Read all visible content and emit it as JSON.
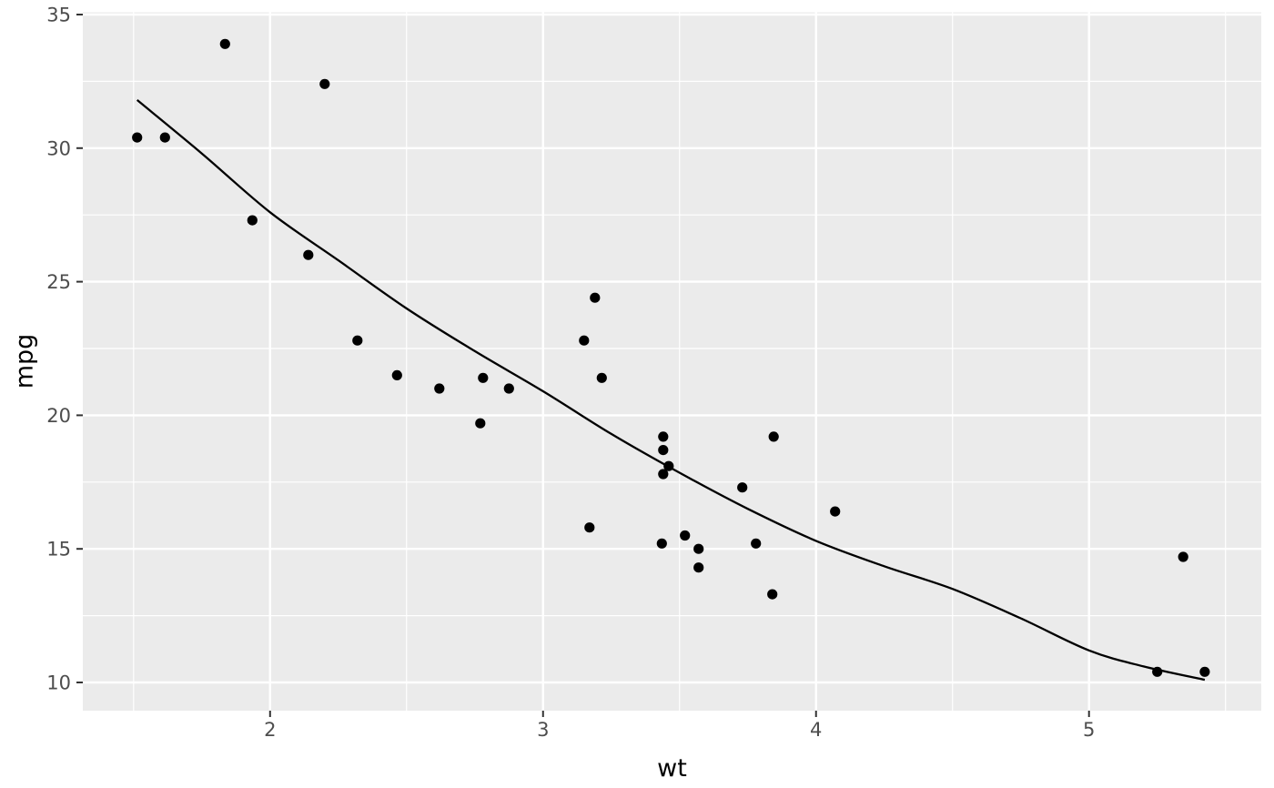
{
  "chart_data": {
    "type": "scatter",
    "title": "",
    "xlabel": "wt",
    "ylabel": "mpg",
    "legend": "none",
    "grid": "white major and minor gridlines on gray panel",
    "xlim": [
      1.314,
      5.631
    ],
    "ylim": [
      8.944,
      35.085
    ],
    "x_ticks": [
      2,
      3,
      4,
      5
    ],
    "x_tick_labels": [
      "2",
      "3",
      "4",
      "5"
    ],
    "y_ticks": [
      10,
      15,
      20,
      25,
      30,
      35
    ],
    "y_tick_labels": [
      "10",
      "15",
      "20",
      "25",
      "30",
      "35"
    ],
    "x_minor_ticks": [
      1.5,
      2.5,
      3.5,
      4.5,
      5.5
    ],
    "y_minor_ticks": [
      12.5,
      17.5,
      22.5,
      27.5,
      32.5
    ],
    "points": [
      [
        2.62,
        21.0
      ],
      [
        2.875,
        21.0
      ],
      [
        2.32,
        22.8
      ],
      [
        3.215,
        21.4
      ],
      [
        3.44,
        18.7
      ],
      [
        3.46,
        18.1
      ],
      [
        3.57,
        14.3
      ],
      [
        3.19,
        24.4
      ],
      [
        3.15,
        22.8
      ],
      [
        3.44,
        19.2
      ],
      [
        3.44,
        17.8
      ],
      [
        4.07,
        16.4
      ],
      [
        3.73,
        17.3
      ],
      [
        3.78,
        15.2
      ],
      [
        5.25,
        10.4
      ],
      [
        5.424,
        10.4
      ],
      [
        5.345,
        14.7
      ],
      [
        2.2,
        32.4
      ],
      [
        1.615,
        30.4
      ],
      [
        1.835,
        33.9
      ],
      [
        2.465,
        21.5
      ],
      [
        3.52,
        15.5
      ],
      [
        3.435,
        15.2
      ],
      [
        3.84,
        13.3
      ],
      [
        3.845,
        19.2
      ],
      [
        1.935,
        27.3
      ],
      [
        2.14,
        26.0
      ],
      [
        1.513,
        30.4
      ],
      [
        3.17,
        15.8
      ],
      [
        2.77,
        19.7
      ],
      [
        3.57,
        15.0
      ],
      [
        2.78,
        21.4
      ]
    ],
    "smooth_line": [
      [
        1.513,
        31.8
      ],
      [
        1.75,
        29.8
      ],
      [
        2.0,
        27.6
      ],
      [
        2.25,
        25.8
      ],
      [
        2.5,
        24.0
      ],
      [
        2.75,
        22.4
      ],
      [
        3.0,
        20.9
      ],
      [
        3.25,
        19.3
      ],
      [
        3.5,
        17.85
      ],
      [
        3.75,
        16.5
      ],
      [
        4.0,
        15.3
      ],
      [
        4.25,
        14.35
      ],
      [
        4.5,
        13.5
      ],
      [
        4.75,
        12.4
      ],
      [
        5.0,
        11.2
      ],
      [
        5.2,
        10.6
      ],
      [
        5.424,
        10.1
      ]
    ]
  },
  "colors": {
    "outer_bg": "#FFFFFF",
    "panel_bg": "#EBEBEB",
    "grid_major": "#FFFFFF",
    "grid_minor": "#FFFFFF",
    "point": "#000000",
    "smooth_line": "#000000",
    "tick_mark": "#333333",
    "tick_label": "#4D4D4D",
    "axis_title": "#000000"
  },
  "style": {
    "point_radius": 5.6,
    "line_width": 2.3,
    "grid_major_width": 2.4,
    "grid_minor_width": 1.2,
    "tick_length": 7,
    "tick_label_size": 21,
    "axis_title_size": 27
  }
}
